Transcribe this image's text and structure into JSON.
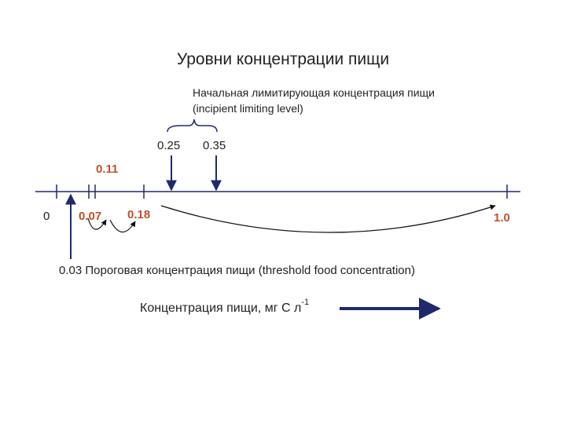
{
  "title": "Уровни концентрации пищи",
  "incipient": {
    "line1": "Начальная лимитирующая концентрация пищи",
    "line2": "(incipient limiting level)",
    "low": "0.25",
    "high": "0.35"
  },
  "axis": {
    "zero": "0",
    "a": "0.07",
    "b": "0.11",
    "c": "0.18",
    "end": "1.0"
  },
  "threshold": "0.03 Пороговая концентрация пищи (threshold food concentration)",
  "axis_title": {
    "text": "Концентрация пищи, мг С л",
    "sup": "-1"
  }
}
